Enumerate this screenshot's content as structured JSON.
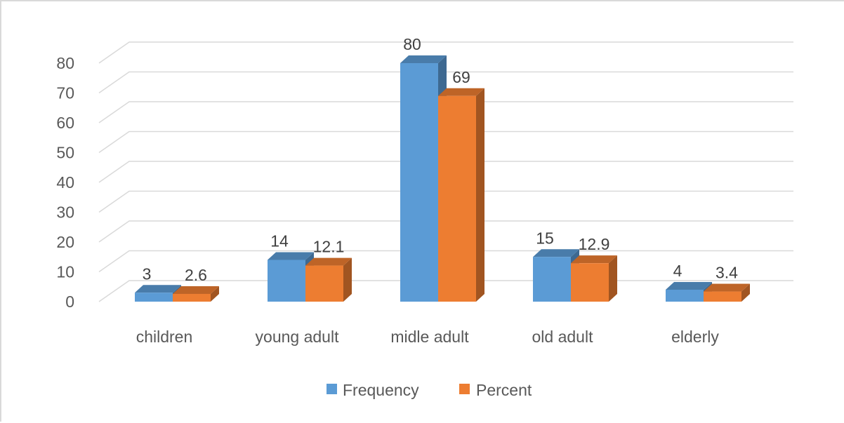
{
  "chart_data": {
    "type": "bar",
    "style": "3d-clustered-column",
    "categories": [
      "children",
      "young adult",
      "midle adult",
      "old adult",
      "elderly"
    ],
    "series": [
      {
        "name": "Frequency",
        "values": [
          3,
          14,
          80,
          15,
          4
        ],
        "labels": [
          "3",
          "14",
          "80",
          "15",
          "4"
        ],
        "color": "#5b9bd5"
      },
      {
        "name": "Percent",
        "values": [
          2.6,
          12.1,
          69,
          12.9,
          3.4
        ],
        "labels": [
          "2.6",
          "12.1",
          "69",
          "12.9",
          "3.4"
        ],
        "color": "#ed7d31"
      }
    ],
    "yticks": [
      "0",
      "10",
      "20",
      "30",
      "40",
      "50",
      "60",
      "70",
      "80"
    ],
    "ylim": [
      0,
      80
    ],
    "grid": true,
    "legend_position": "bottom"
  }
}
